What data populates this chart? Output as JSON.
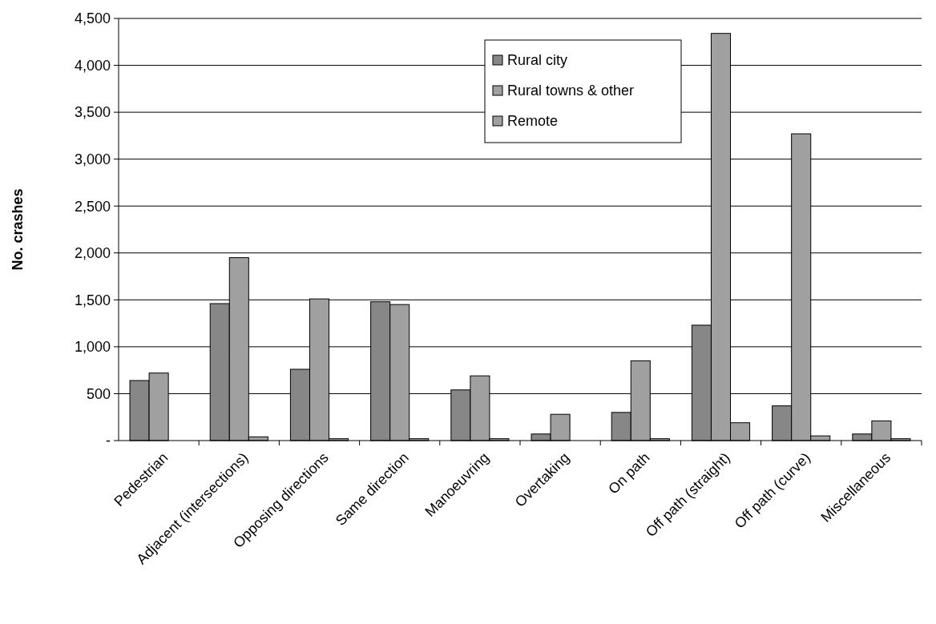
{
  "chart_data": {
    "type": "bar",
    "ylabel": "No. crashes",
    "categories": [
      "Pedestrian",
      "Adjacent (intersections)",
      "Opposing directions",
      "Same direction",
      "Manoeuvring",
      "Overtaking",
      "On path",
      "Off path (straight)",
      "Off path (curve)",
      "Miscellaneous"
    ],
    "series": [
      {
        "name": "Rural city",
        "color": "#878787",
        "values": [
          640,
          1460,
          760,
          1480,
          540,
          70,
          300,
          1230,
          370,
          70
        ]
      },
      {
        "name": "Rural towns & other",
        "color": "#a0a0a0",
        "values": [
          720,
          1950,
          1510,
          1450,
          690,
          280,
          850,
          4340,
          3270,
          210
        ]
      },
      {
        "name": "Remote",
        "color": "#a0a0a0",
        "values": [
          null,
          40,
          20,
          20,
          20,
          null,
          20,
          190,
          50,
          20
        ]
      }
    ],
    "ylim": [
      0,
      4500
    ],
    "yticks": [
      {
        "value": 0,
        "label": "-"
      },
      {
        "value": 500,
        "label": "500"
      },
      {
        "value": 1000,
        "label": "1,000"
      },
      {
        "value": 1500,
        "label": "1,500"
      },
      {
        "value": 2000,
        "label": "2,000"
      },
      {
        "value": 2500,
        "label": "2,500"
      },
      {
        "value": 3000,
        "label": "3,000"
      },
      {
        "value": 3500,
        "label": "3,500"
      },
      {
        "value": 4000,
        "label": "4,000"
      },
      {
        "value": 4500,
        "label": "4,500"
      }
    ],
    "grid": "y",
    "legend": "top right"
  }
}
